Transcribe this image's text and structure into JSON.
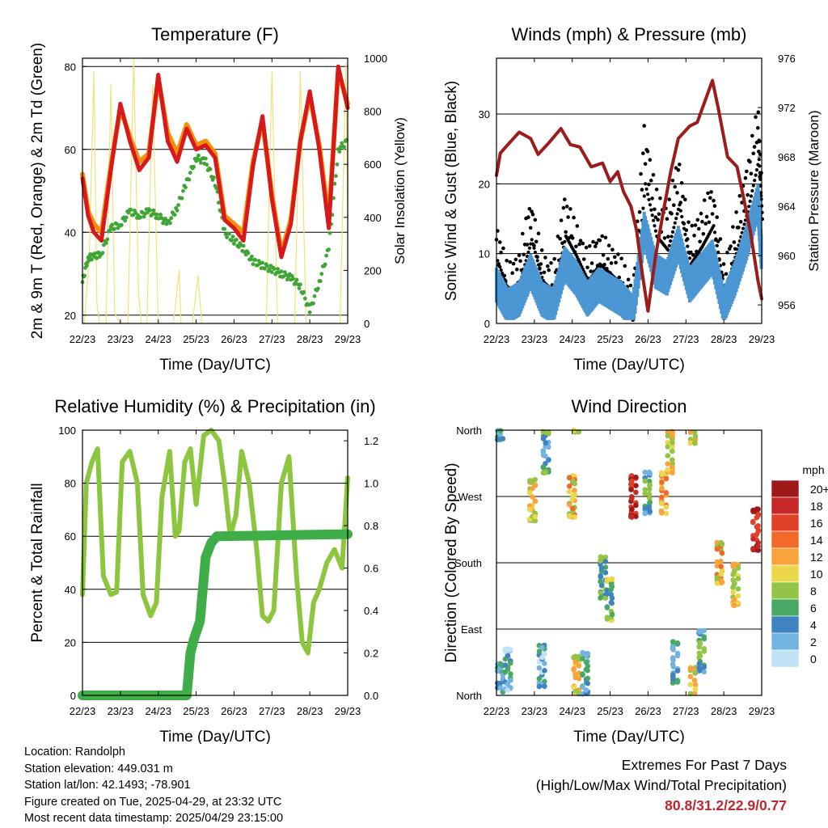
{
  "chart_data": [
    {
      "type": "line",
      "title": "Temperature (F)",
      "xlabel": "Time (Day/UTC)",
      "ylabel": "2m & 9m T (Red, Orange) & 2m Td (Green)",
      "ylabel_right": "Solar Insolation (Yellow)",
      "x_ticks": [
        "22/23",
        "23/23",
        "24/23",
        "25/23",
        "26/23",
        "27/23",
        "28/23",
        "29/23"
      ],
      "ylim": [
        18,
        82
      ],
      "y_ticks": [
        20,
        40,
        60,
        80
      ],
      "y2lim": [
        0,
        1000
      ],
      "y2_ticks": [
        0,
        200,
        400,
        600,
        800,
        1000
      ],
      "grid_y": [
        20,
        40,
        60,
        80
      ],
      "series": [
        {
          "name": "2m T",
          "color": "#d7191c",
          "x": [
            0,
            0.15,
            0.3,
            0.5,
            0.75,
            1.0,
            1.25,
            1.5,
            1.75,
            2.0,
            2.25,
            2.5,
            2.75,
            3.0,
            3.25,
            3.5,
            3.75,
            4.0,
            4.25,
            4.5,
            4.75,
            5.0,
            5.25,
            5.5,
            5.75,
            6.0,
            6.25,
            6.5,
            6.75,
            7.0
          ],
          "y": [
            53,
            44,
            40,
            38,
            55,
            71,
            62,
            55,
            58,
            78,
            62,
            57,
            65,
            60,
            61,
            58,
            43,
            41,
            38,
            56,
            68,
            48,
            34,
            42,
            62,
            74,
            60,
            41,
            80,
            70
          ]
        },
        {
          "name": "9m T",
          "color": "#f98e09",
          "x": [
            0,
            0.15,
            0.3,
            0.5,
            0.75,
            1.0,
            1.25,
            1.5,
            1.75,
            2.0,
            2.25,
            2.5,
            2.75,
            3.0,
            3.25,
            3.5,
            3.75,
            4.0,
            4.25,
            4.5,
            4.75,
            5.0,
            5.25,
            5.5,
            5.75,
            6.0,
            6.25,
            6.5,
            6.75,
            7.0
          ],
          "y": [
            54,
            45,
            42,
            40,
            56,
            70,
            63,
            57,
            59,
            77,
            64,
            59,
            66,
            61,
            62,
            59,
            44,
            42,
            40,
            57,
            67,
            49,
            35,
            43,
            62,
            73,
            61,
            43,
            79,
            71
          ]
        },
        {
          "name": "2m Td",
          "color": "#3fa535",
          "x": [
            0,
            0.15,
            0.3,
            0.5,
            0.75,
            1.0,
            1.25,
            1.5,
            1.75,
            2.0,
            2.25,
            2.5,
            2.75,
            3.0,
            3.25,
            3.5,
            3.75,
            4.0,
            4.25,
            4.5,
            4.75,
            5.0,
            5.25,
            5.5,
            5.75,
            6.0,
            6.25,
            6.5,
            6.75,
            7.0
          ],
          "y": [
            28,
            34,
            34,
            35,
            41,
            42,
            45,
            44,
            45,
            44,
            42,
            46,
            52,
            58,
            57,
            52,
            40,
            38,
            36,
            33,
            32,
            31,
            30,
            29,
            27,
            21,
            28,
            36,
            60,
            62
          ]
        },
        {
          "name": "Solar Insolation",
          "color": "#f4e17a",
          "axis": "right",
          "x": [
            0,
            0.05,
            0.18,
            0.3,
            0.38,
            0.45,
            0.62,
            0.75,
            0.85,
            1.0,
            1.05,
            1.2,
            1.35,
            1.48,
            1.55,
            1.7,
            1.85,
            2.0,
            2.1,
            2.25,
            2.4,
            2.55,
            2.6,
            2.75,
            2.9,
            3.05,
            3.15,
            3.3,
            3.45,
            3.55,
            3.7,
            3.85,
            4.0,
            4.15,
            4.3,
            4.45,
            4.6,
            4.75,
            4.85,
            5.0,
            5.15,
            5.3,
            5.45,
            5.6,
            5.75,
            5.9,
            6.05,
            6.2,
            6.35,
            6.5,
            6.65,
            6.8,
            6.95,
            7.0
          ],
          "y": [
            0,
            0,
            250,
            950,
            80,
            0,
            0,
            900,
            40,
            0,
            0,
            0,
            1000,
            120,
            0,
            0,
            900,
            0,
            0,
            0,
            0,
            200,
            0,
            0,
            0,
            180,
            0,
            0,
            0,
            0,
            0,
            0,
            0,
            0,
            0,
            0,
            0,
            0,
            0,
            950,
            0,
            0,
            0,
            0,
            950,
            0,
            0,
            0,
            0,
            0,
            0,
            0,
            980,
            400
          ]
        }
      ]
    },
    {
      "type": "line",
      "title": "Winds (mph) & Pressure (mb)",
      "xlabel": "Time (Day/UTC)",
      "ylabel": "Sonic Wind & Gust (Blue, Black)",
      "ylabel_right": "Station Pressure (Maroon)",
      "x_ticks": [
        "22/23",
        "23/23",
        "24/23",
        "25/23",
        "26/23",
        "27/23",
        "28/23",
        "29/23"
      ],
      "ylim": [
        0,
        38
      ],
      "y_ticks": [
        0,
        10,
        20,
        30
      ],
      "y2lim": [
        954.5,
        976
      ],
      "y2_ticks": [
        956,
        960,
        964,
        968,
        972,
        976
      ],
      "grid_y": [
        0,
        10,
        20,
        30
      ],
      "series": [
        {
          "name": "Sonic Wind",
          "color": "#4b97d3",
          "x": [
            0,
            0.3,
            0.6,
            0.9,
            1.2,
            1.5,
            1.8,
            2.1,
            2.4,
            2.7,
            3.0,
            3.3,
            3.6,
            3.9,
            4.2,
            4.5,
            4.8,
            5.1,
            5.4,
            5.7,
            6.0,
            6.3,
            6.6,
            6.9,
            7.0
          ],
          "y": [
            6,
            3,
            4,
            8,
            4,
            3,
            9,
            7,
            4,
            6,
            5,
            4,
            2,
            14,
            8,
            7,
            12,
            6,
            8,
            10,
            3,
            7,
            12,
            18,
            10
          ]
        },
        {
          "name": "Gust",
          "color": "#000000",
          "x": [
            0,
            0.3,
            0.6,
            0.9,
            1.2,
            1.5,
            1.8,
            2.1,
            2.4,
            2.7,
            3.0,
            3.3,
            3.6,
            3.9,
            4.2,
            4.5,
            4.8,
            5.1,
            5.4,
            5.7,
            6.0,
            6.3,
            6.6,
            6.9,
            7.0
          ],
          "y": [
            12,
            6,
            8,
            16,
            8,
            6,
            16,
            12,
            8,
            11,
            9,
            7,
            3,
            26,
            17,
            14,
            22,
            11,
            14,
            18,
            6,
            13,
            20,
            29,
            18
          ]
        },
        {
          "name": "Station Pressure",
          "color": "#9c1c1c",
          "axis": "right",
          "x": [
            0,
            0.1,
            0.3,
            0.6,
            0.9,
            1.1,
            1.4,
            1.7,
            1.95,
            2.2,
            2.5,
            2.8,
            3.0,
            3.2,
            3.35,
            3.55,
            3.7,
            3.85,
            4.0,
            4.2,
            4.4,
            4.6,
            4.8,
            5.1,
            5.3,
            5.5,
            5.7,
            5.85,
            6.1,
            6.35,
            6.5,
            6.7,
            6.9,
            7.0
          ],
          "y": [
            966.5,
            968.3,
            969.0,
            970.0,
            969.5,
            968.2,
            969.2,
            970.3,
            969.0,
            968.8,
            967.2,
            967.5,
            966.0,
            966.8,
            965.2,
            964.0,
            962.0,
            958.5,
            955.5,
            960.0,
            963.5,
            966.8,
            969.5,
            970.5,
            970.8,
            972.5,
            974.2,
            972.0,
            968.0,
            967.2,
            965.0,
            962.0,
            958.0,
            956.5
          ]
        }
      ]
    },
    {
      "type": "line",
      "title": "Relative Humidity (%) & Precipitation (in)",
      "xlabel": "Time (Day/UTC)",
      "ylabel": "Percent & Total Rainfall",
      "x_ticks": [
        "22/23",
        "23/23",
        "24/23",
        "25/23",
        "26/23",
        "27/23",
        "28/23",
        "29/23"
      ],
      "ylim": [
        0,
        100
      ],
      "y_ticks": [
        0,
        20,
        40,
        60,
        80,
        100
      ],
      "y2lim": [
        0,
        1.25
      ],
      "y2_ticks": [
        "0.0",
        "0.2",
        "0.4",
        "0.6",
        "0.8",
        "1.0",
        "1.2"
      ],
      "grid_y": [
        20,
        40,
        60,
        80
      ],
      "series": [
        {
          "name": "Relative Humidity",
          "color": "#8cc63f",
          "x": [
            0,
            0.1,
            0.25,
            0.4,
            0.55,
            0.75,
            0.9,
            1.05,
            1.25,
            1.45,
            1.6,
            1.8,
            1.95,
            2.1,
            2.3,
            2.45,
            2.55,
            2.7,
            2.85,
            3.0,
            3.2,
            3.4,
            3.6,
            3.75,
            3.9,
            4.05,
            4.2,
            4.4,
            4.6,
            4.75,
            4.9,
            5.05,
            5.25,
            5.45,
            5.65,
            5.8,
            5.95,
            6.1,
            6.25,
            6.45,
            6.65,
            6.85,
            7.0
          ],
          "y": [
            38,
            80,
            88,
            93,
            45,
            38,
            39,
            88,
            92,
            80,
            38,
            30,
            35,
            75,
            92,
            60,
            62,
            88,
            93,
            72,
            98,
            100,
            96,
            80,
            60,
            68,
            92,
            80,
            55,
            30,
            28,
            32,
            80,
            90,
            45,
            20,
            16,
            35,
            40,
            50,
            55,
            48,
            82
          ]
        },
        {
          "name": "Total Rainfall",
          "color": "#3fae49",
          "axis": "right",
          "x": [
            0,
            2.5,
            2.75,
            2.85,
            2.95,
            3.1,
            3.25,
            3.4,
            3.55,
            7.0
          ],
          "y": [
            0,
            0,
            0,
            0.2,
            0.27,
            0.35,
            0.65,
            0.72,
            0.75,
            0.76
          ]
        }
      ]
    },
    {
      "type": "scatter",
      "title": "Wind Direction",
      "xlabel": "Time (Day/UTC)",
      "ylabel": "Direction (Colored By Speed)",
      "x_ticks": [
        "22/23",
        "23/23",
        "24/23",
        "25/23",
        "26/23",
        "27/23",
        "28/23",
        "29/23"
      ],
      "y_ticks": [
        "North",
        "East",
        "South",
        "West",
        "North"
      ],
      "ylim": [
        0,
        360
      ],
      "colorbar": {
        "label": "mph",
        "labels": [
          "20+",
          "18",
          "16",
          "14",
          "12",
          "10",
          "8",
          "6",
          "4",
          "2",
          "0"
        ],
        "colors": [
          "#9e1a1a",
          "#c62828",
          "#e04128",
          "#f26a2a",
          "#f8a33c",
          "#ecd64a",
          "#93c447",
          "#4aa865",
          "#3f83c1",
          "#72b3e0",
          "#bfe2f5"
        ]
      },
      "clusters": [
        {
          "x": 0.1,
          "dir": 15,
          "speed": 4
        },
        {
          "x": 0.3,
          "dir": 35,
          "speed": 3
        },
        {
          "x": 0.95,
          "dir": 265,
          "speed": 10
        },
        {
          "x": 1.2,
          "dir": 40,
          "speed": 3
        },
        {
          "x": 1.3,
          "dir": 330,
          "speed": 5
        },
        {
          "x": 2.0,
          "dir": 270,
          "speed": 11
        },
        {
          "x": 2.1,
          "dir": 25,
          "speed": 10
        },
        {
          "x": 2.35,
          "dir": 30,
          "speed": 4
        },
        {
          "x": 2.8,
          "dir": 160,
          "speed": 6
        },
        {
          "x": 3.0,
          "dir": 130,
          "speed": 7
        },
        {
          "x": 3.6,
          "dir": 270,
          "speed": 18
        },
        {
          "x": 4.0,
          "dir": 275,
          "speed": 5
        },
        {
          "x": 4.4,
          "dir": 275,
          "speed": 12
        },
        {
          "x": 4.6,
          "dir": 330,
          "speed": 10
        },
        {
          "x": 4.7,
          "dir": 45,
          "speed": 4
        },
        {
          "x": 5.2,
          "dir": 10,
          "speed": 10
        },
        {
          "x": 5.4,
          "dir": 60,
          "speed": 5
        },
        {
          "x": 5.9,
          "dir": 180,
          "speed": 11
        },
        {
          "x": 6.3,
          "dir": 150,
          "speed": 10
        },
        {
          "x": 6.85,
          "dir": 225,
          "speed": 18
        }
      ]
    }
  ],
  "info": {
    "location": "Location: Randolph",
    "elevation": "Station elevation: 449.031 m",
    "latlon": "Station lat/lon: 42.1493; -78.901",
    "created": "Figure created on Tue, 2025-04-29, at 23:32 UTC",
    "recent": "Most recent data timestamp: 2025/04/29 23:15:00"
  },
  "extremes": {
    "title": "Extremes For Past 7 Days",
    "subtitle": "(High/Low/Max Wind/Total Precipitation)",
    "values": "80.8/31.2/22.9/0.77"
  }
}
